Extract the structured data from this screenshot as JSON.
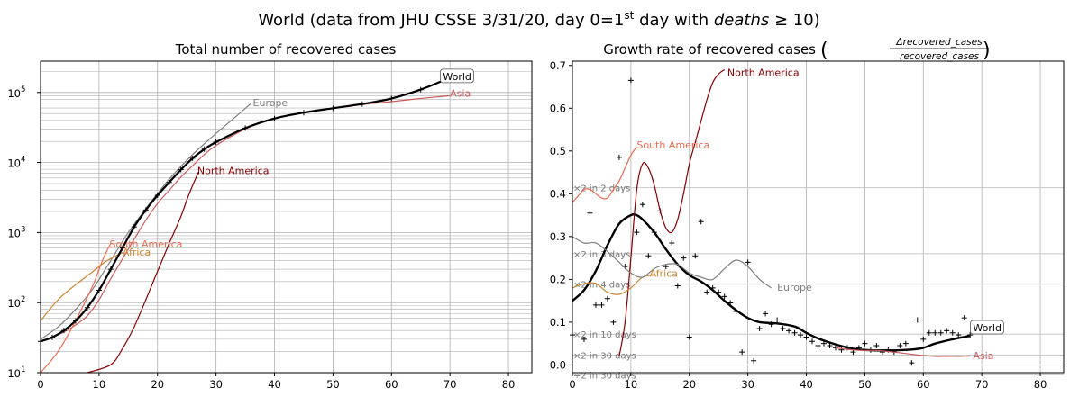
{
  "figure": {
    "title_prefix": "World (data from JHU CSSE 3/31/20, day 0=1",
    "title_sup": "st",
    "title_mid": " day with ",
    "title_var": "deaths",
    "title_suffix": " ≥ 10)"
  },
  "chart_data": [
    {
      "type": "line",
      "title": "Total number of recovered cases",
      "yscale": "log",
      "xlim": [
        0,
        84
      ],
      "ylim": [
        10,
        280000
      ],
      "x_ticks": [
        0,
        10,
        20,
        30,
        40,
        50,
        60,
        70,
        80
      ],
      "y_tick_labels": [
        {
          "value": 10,
          "base": "10",
          "exp": "1"
        },
        {
          "value": 100,
          "base": "10",
          "exp": "2"
        },
        {
          "value": 1000,
          "base": "10",
          "exp": "3"
        },
        {
          "value": 10000,
          "base": "10",
          "exp": "4"
        },
        {
          "value": 100000,
          "base": "10",
          "exp": "5"
        }
      ],
      "grid": true,
      "series": [
        {
          "name": "Asia",
          "color": "#cd5c5c",
          "width": 1.2,
          "x": [
            0,
            2,
            4,
            6,
            8,
            10,
            12,
            14,
            16,
            18,
            20,
            22,
            24,
            26,
            28,
            30,
            35,
            40,
            45,
            50,
            55,
            60,
            65,
            70
          ],
          "y": [
            28,
            32,
            38,
            48,
            65,
            110,
            220,
            420,
            800,
            1500,
            2600,
            4000,
            6200,
            9000,
            13000,
            17500,
            30000,
            42000,
            51000,
            59000,
            67000,
            74000,
            82000,
            90000
          ],
          "label": "Asia",
          "label_x": 70,
          "label_y": 92000,
          "boxed": false
        },
        {
          "name": "Europe",
          "color": "#808080",
          "width": 1.2,
          "x": [
            0,
            3,
            6,
            9,
            12,
            15,
            18,
            20,
            22,
            24,
            26,
            28,
            30,
            32,
            34,
            36
          ],
          "y": [
            30,
            45,
            80,
            160,
            400,
            1000,
            2200,
            3600,
            5800,
            8800,
            13000,
            18500,
            26000,
            36000,
            50000,
            70000
          ],
          "label": "Europe",
          "label_x": 36.3,
          "label_y": 68000,
          "boxed": false
        },
        {
          "name": "North America",
          "color": "#8b0000",
          "width": 1.2,
          "x": [
            8,
            12,
            14,
            16,
            18,
            20,
            22,
            24,
            25,
            26,
            27
          ],
          "y": [
            10,
            13,
            22,
            45,
            110,
            280,
            700,
            1700,
            2900,
            4700,
            7300
          ],
          "label": "North America",
          "label_x": 26.8,
          "label_y": 7200,
          "boxed": false
        },
        {
          "name": "South America",
          "color": "#ee6a50",
          "width": 1.2,
          "x": [
            0,
            3,
            6,
            9,
            10,
            11,
            12
          ],
          "y": [
            10,
            20,
            55,
            180,
            300,
            480,
            700
          ],
          "label": "South America",
          "label_x": 11.8,
          "label_y": 650,
          "boxed": false
        },
        {
          "name": "Africa",
          "color": "#cd8532",
          "width": 1.2,
          "x": [
            0,
            3,
            6,
            9,
            11,
            13,
            14
          ],
          "y": [
            55,
            110,
            180,
            280,
            380,
            470,
            520
          ],
          "label": "Africa",
          "label_x": 14,
          "label_y": 500,
          "boxed": false
        },
        {
          "name": "World",
          "color": "#000000",
          "width": 2.2,
          "x": [
            0,
            2,
            4,
            6,
            8,
            10,
            12,
            14,
            16,
            18,
            20,
            22,
            24,
            26,
            28,
            30,
            35,
            40,
            45,
            50,
            55,
            60,
            65,
            69
          ],
          "y": [
            28,
            32,
            40,
            55,
            85,
            150,
            300,
            600,
            1200,
            2100,
            3400,
            5200,
            7900,
            11500,
            15500,
            19500,
            31000,
            42500,
            51500,
            59500,
            68500,
            82000,
            110000,
            150000
          ],
          "label": "World",
          "label_x": 68.8,
          "label_y": 160000,
          "boxed": true
        }
      ]
    },
    {
      "type": "line",
      "title_text": "Growth rate of recovered cases",
      "title_frac_num": "Δrecovered_cases",
      "title_frac_den": "recovered_cases",
      "xlim": [
        0,
        84
      ],
      "ylim": [
        -0.018,
        0.71
      ],
      "x_ticks": [
        0,
        10,
        20,
        30,
        40,
        50,
        60,
        70,
        80
      ],
      "y_ticks": [
        0.0,
        0.1,
        0.2,
        0.3,
        0.4,
        0.5,
        0.6,
        0.7
      ],
      "y_tick_labels": [
        "0.0",
        "0.1",
        "0.2",
        "0.3",
        "0.4",
        "0.5",
        "0.6",
        "0.7"
      ],
      "grid": true,
      "reference_lines": [
        {
          "label": "×2 in 2 days",
          "y": 0.414
        },
        {
          "label": "×2 in 3 days",
          "y": 0.26
        },
        {
          "label": "×2 in 4 days",
          "y": 0.189
        },
        {
          "label": "×2 in 10 days",
          "y": 0.072
        },
        {
          "label": "×2 in 30 days",
          "y": 0.023
        },
        {
          "label": "÷2 in 30 days",
          "y": -0.023
        }
      ],
      "series": [
        {
          "name": "World",
          "color": "#000000",
          "width": 2.4,
          "x": [
            0,
            2,
            4,
            6,
            8,
            10,
            11,
            12,
            14,
            16,
            18,
            20,
            22,
            24,
            26,
            28,
            30,
            32,
            35,
            38,
            40,
            42,
            45,
            48,
            50,
            52,
            55,
            58,
            60,
            62,
            65,
            68
          ],
          "y": [
            0.15,
            0.175,
            0.22,
            0.28,
            0.33,
            0.35,
            0.35,
            0.34,
            0.31,
            0.27,
            0.235,
            0.21,
            0.195,
            0.175,
            0.15,
            0.128,
            0.11,
            0.1,
            0.097,
            0.09,
            0.075,
            0.062,
            0.048,
            0.038,
            0.035,
            0.034,
            0.034,
            0.036,
            0.04,
            0.05,
            0.06,
            0.068
          ],
          "label": "World",
          "label_x": 68.5,
          "label_y": 0.083,
          "boxed": true
        },
        {
          "name": "North America",
          "color": "#8b0000",
          "width": 1.2,
          "x": [
            8,
            9,
            10,
            11,
            12,
            13,
            14,
            15,
            16,
            17,
            18,
            19,
            20,
            21,
            22,
            23,
            24,
            25,
            26
          ],
          "y": [
            0.02,
            0.1,
            0.25,
            0.41,
            0.47,
            0.46,
            0.42,
            0.36,
            0.32,
            0.31,
            0.34,
            0.4,
            0.47,
            0.52,
            0.57,
            0.62,
            0.66,
            0.68,
            0.69
          ],
          "label": "North America",
          "label_x": 26.5,
          "label_y": 0.68,
          "boxed": false
        },
        {
          "name": "South America",
          "color": "#ee6a50",
          "width": 1.2,
          "x": [
            0,
            1,
            2,
            3,
            4,
            5,
            6,
            7,
            8,
            9,
            10,
            11
          ],
          "y": [
            0.38,
            0.395,
            0.41,
            0.41,
            0.4,
            0.39,
            0.39,
            0.41,
            0.43,
            0.46,
            0.49,
            0.51
          ],
          "label": "South America",
          "label_x": 11,
          "label_y": 0.51,
          "boxed": false
        },
        {
          "name": "Africa",
          "color": "#cd8532",
          "width": 1.2,
          "x": [
            0,
            2,
            4,
            6,
            8,
            10,
            12,
            14
          ],
          "y": [
            0.18,
            0.19,
            0.19,
            0.17,
            0.165,
            0.18,
            0.205,
            0.21
          ],
          "label": "Africa",
          "label_x": 13.2,
          "label_y": 0.21,
          "boxed": false
        },
        {
          "name": "Europe",
          "color": "#808080",
          "width": 1.2,
          "x": [
            0,
            2,
            4,
            6,
            8,
            10,
            12,
            14,
            16,
            18,
            20,
            22,
            24,
            26,
            28,
            30,
            32,
            34
          ],
          "y": [
            0.3,
            0.285,
            0.285,
            0.265,
            0.24,
            0.215,
            0.205,
            0.225,
            0.235,
            0.235,
            0.215,
            0.205,
            0.2,
            0.225,
            0.245,
            0.23,
            0.2,
            0.18
          ],
          "label": "Europe",
          "label_x": 35,
          "label_y": 0.178,
          "boxed": false
        },
        {
          "name": "Asia",
          "color": "#cd5c5c",
          "width": 1.2,
          "x": [
            45,
            48,
            50,
            52,
            55,
            58,
            60,
            62,
            64,
            66,
            68
          ],
          "y": [
            0.04,
            0.035,
            0.034,
            0.034,
            0.03,
            0.025,
            0.022,
            0.02,
            0.02,
            0.02,
            0.021
          ],
          "label": "Asia",
          "label_x": 68.5,
          "label_y": 0.018,
          "boxed": false
        }
      ],
      "scatter": [
        {
          "name": "World",
          "color": "#000000",
          "x": [
            0,
            2,
            3,
            4,
            5,
            6,
            7,
            8,
            9,
            10,
            11,
            12,
            13,
            14,
            15,
            16,
            17,
            18,
            19,
            20,
            21,
            22,
            23,
            24,
            25,
            26,
            27,
            28,
            29,
            30,
            31,
            32,
            33,
            34,
            35,
            36,
            37,
            38,
            39,
            40,
            41,
            42,
            43,
            44,
            45,
            46,
            47,
            48,
            49,
            50,
            51,
            52,
            53,
            54,
            55,
            56,
            57,
            58,
            59,
            60,
            61,
            62,
            63,
            64,
            65,
            66,
            67,
            68
          ],
          "y": [
            0.07,
            0.06,
            0.355,
            0.14,
            0.14,
            0.155,
            0.1,
            0.485,
            0.23,
            0.665,
            0.31,
            0.375,
            0.255,
            0.31,
            0.36,
            0.23,
            0.285,
            0.185,
            0.25,
            0.065,
            0.255,
            0.335,
            0.17,
            0.18,
            0.17,
            0.16,
            0.145,
            0.125,
            0.03,
            0.24,
            0.01,
            0.085,
            0.12,
            0.095,
            0.105,
            0.085,
            0.08,
            0.075,
            0.07,
            0.065,
            0.055,
            0.045,
            0.05,
            0.045,
            0.04,
            0.035,
            0.04,
            0.03,
            0.04,
            0.05,
            0.035,
            0.045,
            0.03,
            0.035,
            0.03,
            0.045,
            0.05,
            0.005,
            0.105,
            0.06,
            0.075,
            0.075,
            0.075,
            0.08,
            0.075,
            0.07,
            0.11,
            0.07
          ]
        }
      ]
    }
  ]
}
